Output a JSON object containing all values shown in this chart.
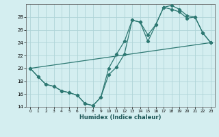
{
  "xlabel": "Humidex (Indice chaleur)",
  "bg_color": "#d4eef0",
  "grid_color": "#afd4d8",
  "line_color": "#2d7872",
  "ylim": [
    14,
    30
  ],
  "xlim": [
    -0.5,
    23.5
  ],
  "yticks": [
    14,
    16,
    18,
    20,
    22,
    24,
    26,
    28
  ],
  "xticks": [
    0,
    1,
    2,
    3,
    4,
    5,
    6,
    7,
    8,
    9,
    10,
    11,
    12,
    13,
    14,
    15,
    16,
    17,
    18,
    19,
    20,
    21,
    22,
    23
  ],
  "line1_x": [
    0,
    1,
    2,
    3,
    4,
    5,
    6,
    7,
    8,
    9,
    10,
    11,
    12,
    13,
    14,
    15,
    16,
    17,
    18,
    19,
    20,
    21,
    22,
    23
  ],
  "line1_y": [
    20.0,
    18.7,
    17.5,
    17.2,
    16.5,
    16.2,
    15.8,
    14.5,
    14.2,
    15.5,
    20.0,
    22.2,
    24.2,
    27.5,
    27.2,
    25.2,
    26.8,
    29.5,
    29.8,
    29.2,
    28.2,
    28.0,
    25.5,
    24.0
  ],
  "line2_x": [
    0,
    1,
    2,
    3,
    4,
    5,
    6,
    7,
    8,
    9,
    10,
    11,
    12,
    13,
    14,
    15,
    16,
    17,
    18,
    19,
    20,
    21,
    22,
    23
  ],
  "line2_y": [
    20.0,
    18.7,
    17.5,
    17.2,
    16.5,
    16.2,
    15.8,
    14.5,
    14.2,
    15.5,
    19.0,
    20.2,
    22.2,
    27.5,
    27.2,
    24.2,
    26.8,
    29.5,
    29.2,
    28.8,
    27.8,
    28.0,
    25.5,
    24.0
  ],
  "line3_x": [
    0,
    23
  ],
  "line3_y": [
    20.0,
    24.0
  ]
}
